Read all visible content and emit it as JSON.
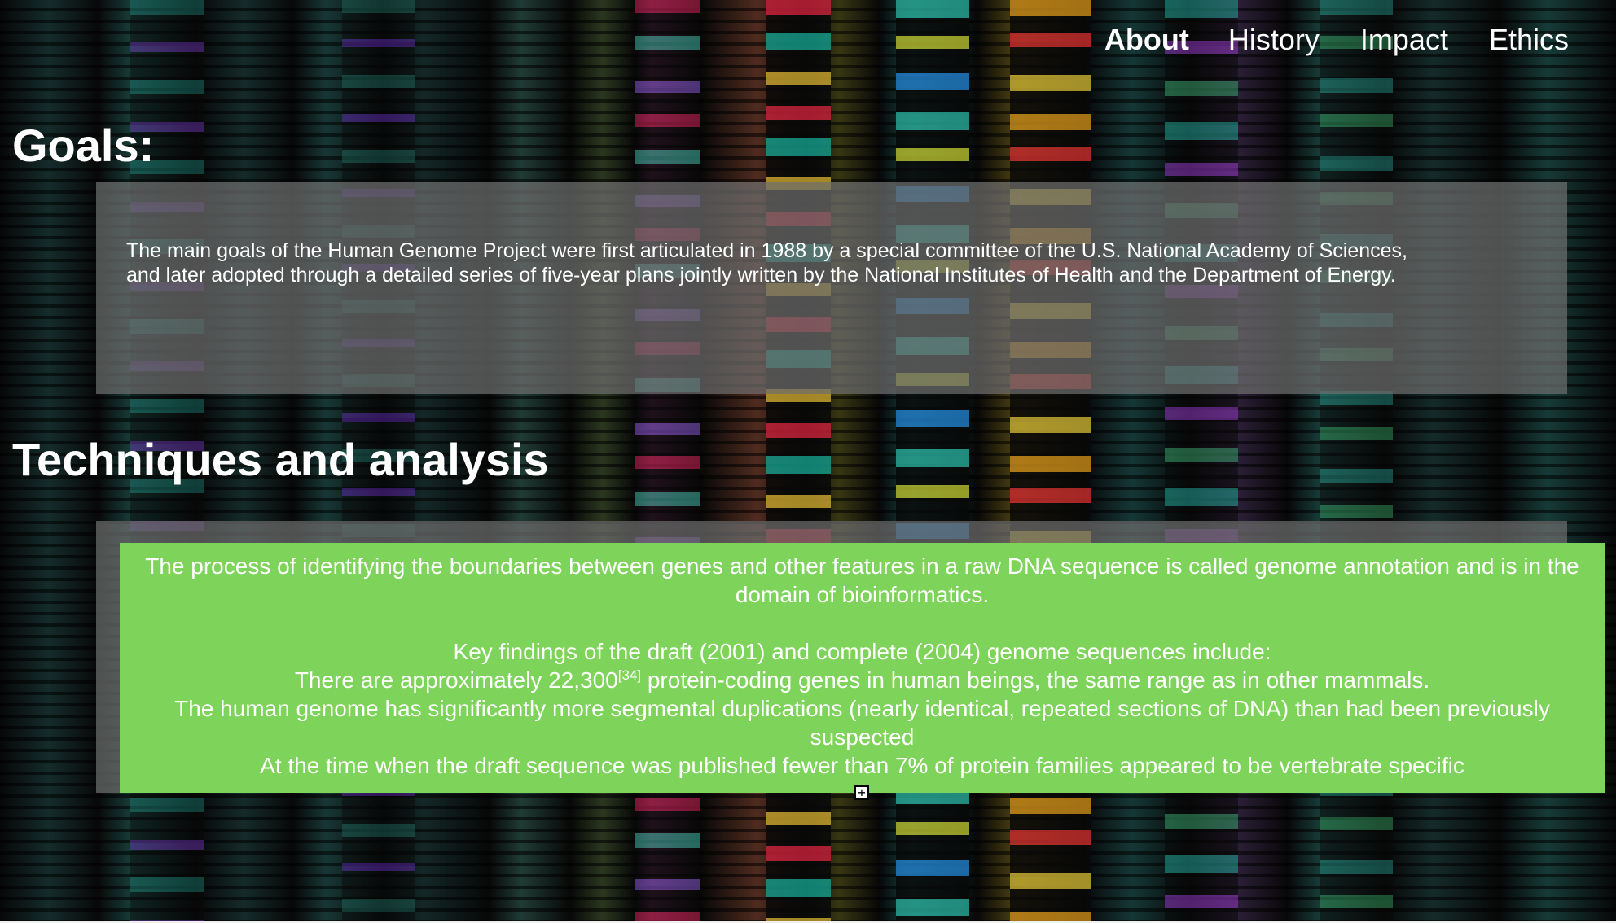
{
  "nav": {
    "items": [
      {
        "label": "About",
        "active": true
      },
      {
        "label": "History",
        "active": false
      },
      {
        "label": "Impact",
        "active": false
      },
      {
        "label": "Ethics",
        "active": false
      }
    ]
  },
  "goals": {
    "heading": "Goals:",
    "text": "The main goals of the Human Genome Project were first articulated in 1988 by a special committee of the U.S. National Academy of Sciences, and later adopted through a detailed series of five-year plans jointly written by the National Institutes of Health and the Department of Energy."
  },
  "techniques": {
    "heading": "Techniques and analysis",
    "intro": "The process of identifying the boundaries between genes and other features in a raw DNA sequence is called genome annotation and is in the domain of bioinformatics.",
    "findings_title": "Key findings of the draft (2001) and complete (2004) genome sequences include:",
    "finding_1_before": "There are approximately 22,300",
    "finding_1_ref": "[34]",
    "finding_1_after": " protein-coding genes in human beings, the same range as in other mammals.",
    "finding_2": "The human genome has significantly more segmental duplications (nearly identical, repeated sections of DNA) than had been previously suspected",
    "finding_3": "At the time when the draft sequence was published fewer than 7% of protein families appeared to be vertebrate specific"
  },
  "colors": {
    "green_box": "#7ed45a",
    "panel": "#6e6e6e",
    "text": "#ffffff"
  },
  "icons": {
    "resize_handle": "move-handle-icon"
  }
}
